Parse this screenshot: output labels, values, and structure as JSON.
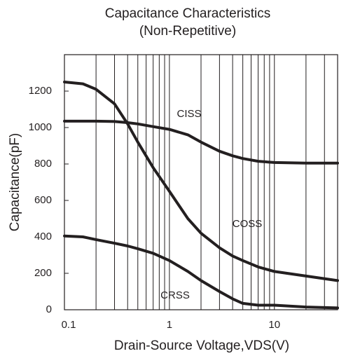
{
  "chart_data": {
    "type": "line",
    "title": "Capacitance Characteristics",
    "subtitle": "(Non-Repetitive)",
    "x_label": "Drain-Source Voltage,VDS(V)",
    "y_label": "Capacitance(pF)",
    "x_scale": "log",
    "xlim": [
      0.1,
      40
    ],
    "ylim": [
      0,
      1400
    ],
    "xticks": [
      0.1,
      1,
      10
    ],
    "yticks": [
      0,
      200,
      400,
      600,
      800,
      1000,
      1200
    ],
    "x_minor_ticks": [
      0.2,
      0.3,
      0.4,
      0.5,
      0.6,
      0.7,
      0.8,
      0.9,
      2,
      3,
      4,
      5,
      6,
      7,
      8,
      9,
      20,
      30
    ],
    "grid": true,
    "x": [
      0.1,
      0.15,
      0.2,
      0.3,
      0.4,
      0.5,
      0.7,
      1,
      1.5,
      2,
      3,
      4,
      5,
      7,
      10,
      20,
      40
    ],
    "series": [
      {
        "name": "CISS",
        "color": "#231f20",
        "values": [
          1035,
          1035,
          1035,
          1033,
          1027,
          1020,
          1005,
          990,
          960,
          920,
          870,
          845,
          830,
          815,
          808,
          805,
          805
        ]
      },
      {
        "name": "COSS",
        "color": "#231f20",
        "values": [
          1250,
          1240,
          1210,
          1130,
          1020,
          920,
          780,
          650,
          500,
          420,
          340,
          295,
          270,
          235,
          210,
          185,
          160
        ]
      },
      {
        "name": "CRSS",
        "color": "#231f20",
        "values": [
          405,
          400,
          385,
          365,
          350,
          335,
          310,
          270,
          210,
          160,
          100,
          60,
          35,
          25,
          25,
          15,
          10
        ]
      }
    ]
  }
}
